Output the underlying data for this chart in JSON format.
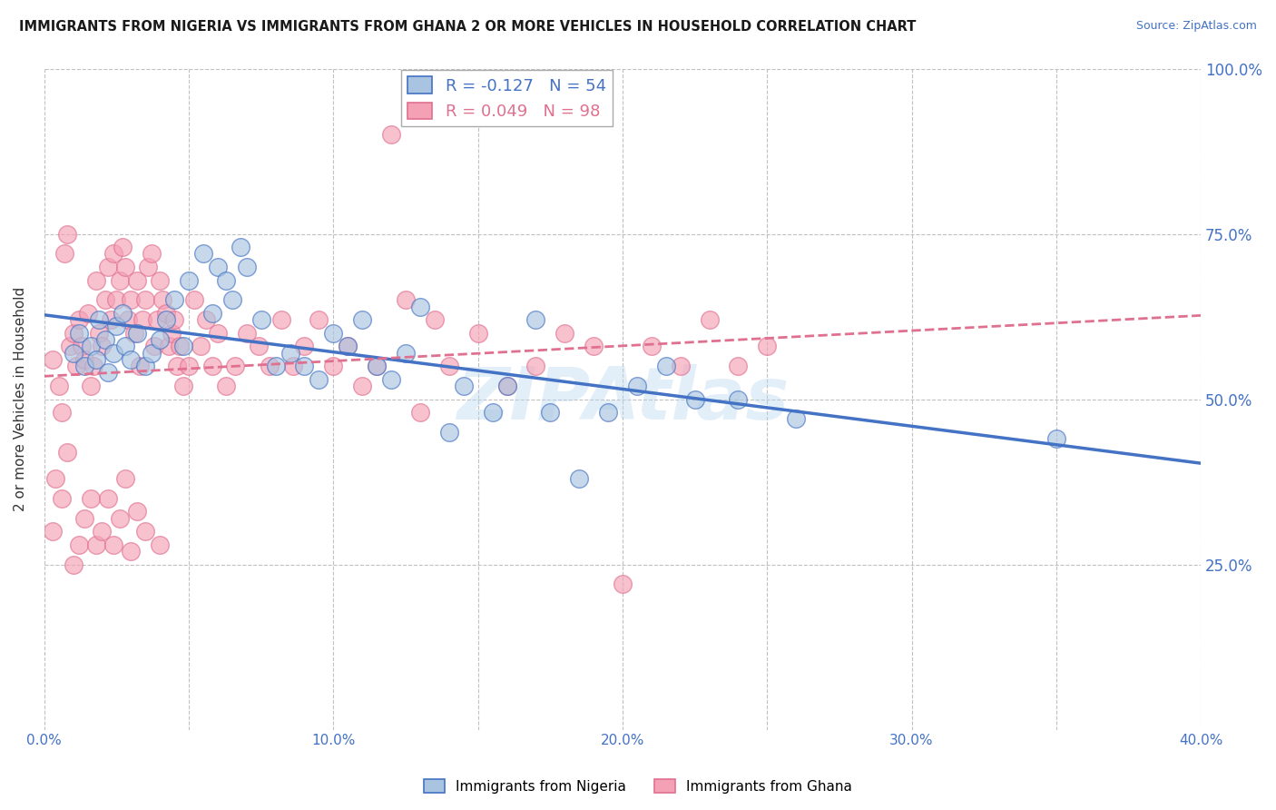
{
  "title": "IMMIGRANTS FROM NIGERIA VS IMMIGRANTS FROM GHANA 2 OR MORE VEHICLES IN HOUSEHOLD CORRELATION CHART",
  "source": "Source: ZipAtlas.com",
  "ylabel": "2 or more Vehicles in Household",
  "xlim": [
    0.0,
    0.4
  ],
  "ylim": [
    0.0,
    1.0
  ],
  "xtick_labels": [
    "0.0%",
    "",
    "10.0%",
    "",
    "20.0%",
    "",
    "30.0%",
    "",
    "40.0%"
  ],
  "xtick_vals": [
    0.0,
    0.05,
    0.1,
    0.15,
    0.2,
    0.25,
    0.3,
    0.35,
    0.4
  ],
  "ytick_labels": [
    "25.0%",
    "50.0%",
    "75.0%",
    "100.0%"
  ],
  "ytick_vals": [
    0.25,
    0.5,
    0.75,
    1.0
  ],
  "nigeria_R": -0.127,
  "nigeria_N": 54,
  "ghana_R": 0.049,
  "ghana_N": 98,
  "nigeria_color": "#a8c4e0",
  "ghana_color": "#f4a0b5",
  "nigeria_line_color": "#4472c4",
  "ghana_line_color": "#e07090",
  "nigeria_x": [
    0.01,
    0.012,
    0.014,
    0.016,
    0.018,
    0.019,
    0.021,
    0.022,
    0.024,
    0.025,
    0.027,
    0.028,
    0.03,
    0.032,
    0.035,
    0.037,
    0.04,
    0.042,
    0.045,
    0.048,
    0.05,
    0.055,
    0.058,
    0.06,
    0.063,
    0.065,
    0.068,
    0.07,
    0.075,
    0.08,
    0.085,
    0.09,
    0.095,
    0.1,
    0.105,
    0.11,
    0.115,
    0.12,
    0.125,
    0.13,
    0.14,
    0.145,
    0.155,
    0.16,
    0.17,
    0.175,
    0.185,
    0.195,
    0.205,
    0.215,
    0.225,
    0.24,
    0.26,
    0.35
  ],
  "nigeria_y": [
    0.57,
    0.6,
    0.55,
    0.58,
    0.56,
    0.62,
    0.59,
    0.54,
    0.57,
    0.61,
    0.63,
    0.58,
    0.56,
    0.6,
    0.55,
    0.57,
    0.59,
    0.62,
    0.65,
    0.58,
    0.68,
    0.72,
    0.63,
    0.7,
    0.68,
    0.65,
    0.73,
    0.7,
    0.62,
    0.55,
    0.57,
    0.55,
    0.53,
    0.6,
    0.58,
    0.62,
    0.55,
    0.53,
    0.57,
    0.64,
    0.45,
    0.52,
    0.48,
    0.52,
    0.62,
    0.48,
    0.38,
    0.48,
    0.52,
    0.55,
    0.5,
    0.5,
    0.47,
    0.44
  ],
  "ghana_x": [
    0.003,
    0.005,
    0.006,
    0.007,
    0.008,
    0.009,
    0.01,
    0.011,
    0.012,
    0.013,
    0.014,
    0.015,
    0.016,
    0.017,
    0.018,
    0.019,
    0.02,
    0.021,
    0.022,
    0.023,
    0.024,
    0.025,
    0.026,
    0.027,
    0.028,
    0.029,
    0.03,
    0.031,
    0.032,
    0.033,
    0.034,
    0.035,
    0.036,
    0.037,
    0.038,
    0.039,
    0.04,
    0.041,
    0.042,
    0.043,
    0.044,
    0.045,
    0.046,
    0.047,
    0.048,
    0.05,
    0.052,
    0.054,
    0.056,
    0.058,
    0.06,
    0.063,
    0.066,
    0.07,
    0.074,
    0.078,
    0.082,
    0.086,
    0.09,
    0.095,
    0.1,
    0.105,
    0.11,
    0.115,
    0.12,
    0.125,
    0.13,
    0.135,
    0.14,
    0.15,
    0.16,
    0.17,
    0.18,
    0.19,
    0.2,
    0.21,
    0.22,
    0.23,
    0.24,
    0.25,
    0.003,
    0.004,
    0.006,
    0.008,
    0.01,
    0.012,
    0.014,
    0.016,
    0.018,
    0.02,
    0.022,
    0.024,
    0.026,
    0.028,
    0.03,
    0.032,
    0.035,
    0.04
  ],
  "ghana_y": [
    0.56,
    0.52,
    0.48,
    0.72,
    0.75,
    0.58,
    0.6,
    0.55,
    0.62,
    0.58,
    0.56,
    0.63,
    0.52,
    0.55,
    0.68,
    0.6,
    0.58,
    0.65,
    0.7,
    0.62,
    0.72,
    0.65,
    0.68,
    0.73,
    0.7,
    0.62,
    0.65,
    0.6,
    0.68,
    0.55,
    0.62,
    0.65,
    0.7,
    0.72,
    0.58,
    0.62,
    0.68,
    0.65,
    0.63,
    0.58,
    0.6,
    0.62,
    0.55,
    0.58,
    0.52,
    0.55,
    0.65,
    0.58,
    0.62,
    0.55,
    0.6,
    0.52,
    0.55,
    0.6,
    0.58,
    0.55,
    0.62,
    0.55,
    0.58,
    0.62,
    0.55,
    0.58,
    0.52,
    0.55,
    0.9,
    0.65,
    0.48,
    0.62,
    0.55,
    0.6,
    0.52,
    0.55,
    0.6,
    0.58,
    0.22,
    0.58,
    0.55,
    0.62,
    0.55,
    0.58,
    0.3,
    0.38,
    0.35,
    0.42,
    0.25,
    0.28,
    0.32,
    0.35,
    0.28,
    0.3,
    0.35,
    0.28,
    0.32,
    0.38,
    0.27,
    0.33,
    0.3,
    0.28
  ]
}
